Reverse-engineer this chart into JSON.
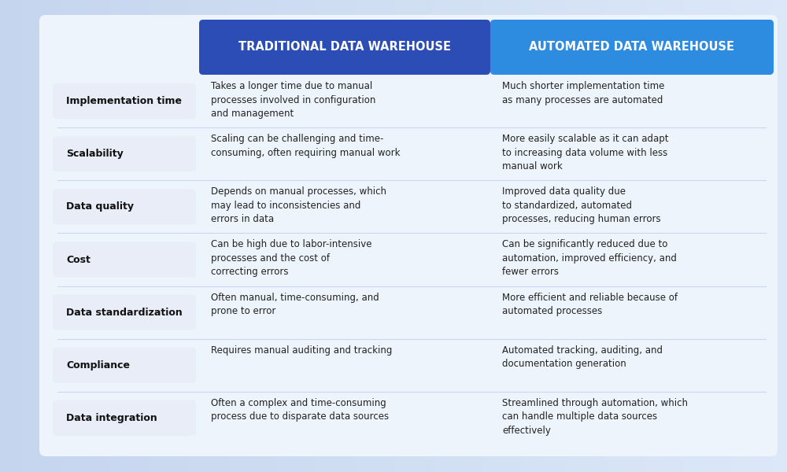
{
  "bg_color_left": "#c5d5ee",
  "bg_color_right": "#dce8f8",
  "table_bg": "#eef3fc",
  "header1_color": "#2c4db5",
  "header2_color": "#2d8ce0",
  "header_text_color": "#ffffff",
  "label_box_bg": "#e8edf8",
  "label_box_edge": "#c8d4e8",
  "row_label_text_color": "#111111",
  "row_text_color": "#222222",
  "divider_color": "#c8d8ee",
  "col1_header": "TRADITIONAL DATA WAREHOUSE",
  "col2_header": "AUTOMATED DATA WAREHOUSE",
  "rows": [
    {
      "label": "Implementation time",
      "col1": "Takes a longer time due to manual\nprocesses involved in configuration\nand management",
      "col2": "Much shorter implementation time\nas many processes are automated"
    },
    {
      "label": "Scalability",
      "col1": "Scaling can be challenging and time-\nconsuming, often requiring manual work",
      "col2": "More easily scalable as it can adapt\nto increasing data volume with less\nmanual work"
    },
    {
      "label": "Data quality",
      "col1": "Depends on manual processes, which\nmay lead to inconsistencies and\nerrors in data",
      "col2": "Improved data quality due\nto standardized, automated\nprocesses, reducing human errors"
    },
    {
      "label": "Cost",
      "col1": "Can be high due to labor-intensive\nprocesses and the cost of\ncorrecting errors",
      "col2": "Can be significantly reduced due to\nautomation, improved efficiency, and\nfewer errors"
    },
    {
      "label": "Data standardization",
      "col1": "Often manual, time-consuming, and\nprone to error",
      "col2": "More efficient and reliable because of\nautomated processes"
    },
    {
      "label": "Compliance",
      "col1": "Requires manual auditing and tracking",
      "col2": "Automated tracking, auditing, and\ndocumentation generation"
    },
    {
      "label": "Data integration",
      "col1": "Often a complex and time-consuming\nprocess due to disparate data sources",
      "col2": "Streamlined through automation, which\ncan handle multiple data sources\neffectively"
    }
  ],
  "fig_width": 10.0,
  "fig_height": 6.0
}
